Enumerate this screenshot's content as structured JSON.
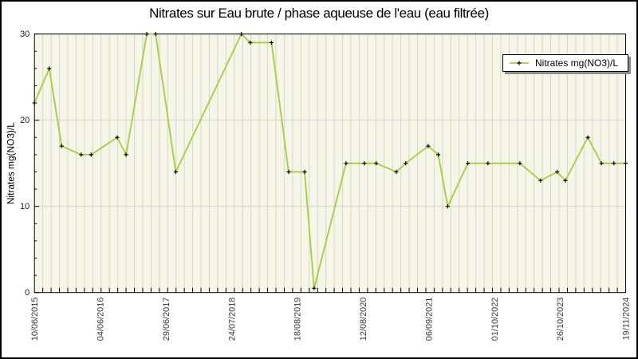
{
  "title": "Nitrates sur Eau brute / phase aqueuse de l'eau (eau filtrée)",
  "chart_data": {
    "type": "line",
    "title": "Nitrates sur Eau brute / phase aqueuse de l'eau (eau filtrée)",
    "xlabel": "",
    "ylabel": "Nitrates mg(NO3)/L",
    "ylim": [
      0,
      30
    ],
    "y_ticks": [
      0,
      10,
      20,
      30
    ],
    "y_minor_tick_step": 2,
    "x_tick_labels": [
      "10/06/2015",
      "04/06/2016",
      "29/06/2017",
      "24/07/2018",
      "18/08/2019",
      "12/08/2020",
      "06/09/2021",
      "01/10/2022",
      "26/10/2023",
      "19/11/2024"
    ],
    "grid": {
      "vertical_minor_gridlines": true,
      "horizontal_major_gridlines": true,
      "vertical_gridline_intervals": 71
    },
    "legend": {
      "label": "Nitrates mg(NO3)/L",
      "position": "top-right"
    },
    "series": [
      {
        "name": "Nitrates mg(NO3)/L",
        "marker": "plus",
        "x_fracs": [
          0,
          0.025,
          0.046,
          0.079,
          0.096,
          0.14,
          0.155,
          0.19,
          0.205,
          0.239,
          0.35,
          0.365,
          0.401,
          0.43,
          0.457,
          0.473,
          0.527,
          0.558,
          0.578,
          0.612,
          0.628,
          0.666,
          0.683,
          0.699,
          0.733,
          0.767,
          0.821,
          0.856,
          0.884,
          0.898,
          0.936,
          0.959,
          0.98,
          1.0
        ],
        "values": [
          22,
          26,
          17,
          16,
          16,
          18,
          16,
          30,
          30,
          14,
          30,
          29,
          29,
          14,
          14,
          0.5,
          15,
          15,
          15,
          14,
          15,
          17,
          16,
          10,
          15,
          15,
          15,
          13,
          14,
          13,
          18,
          15,
          15,
          15
        ]
      }
    ]
  },
  "colors": {
    "line": "#a3ce38",
    "marker": "#000000",
    "plot_bg": "#f5f5e8",
    "gridline": "#d5d5cd",
    "axis": "#000000",
    "tick_label": "#3a3a3a",
    "y_tick_label": "#1a1a1a",
    "legend_shadow": "#8f8f88"
  }
}
